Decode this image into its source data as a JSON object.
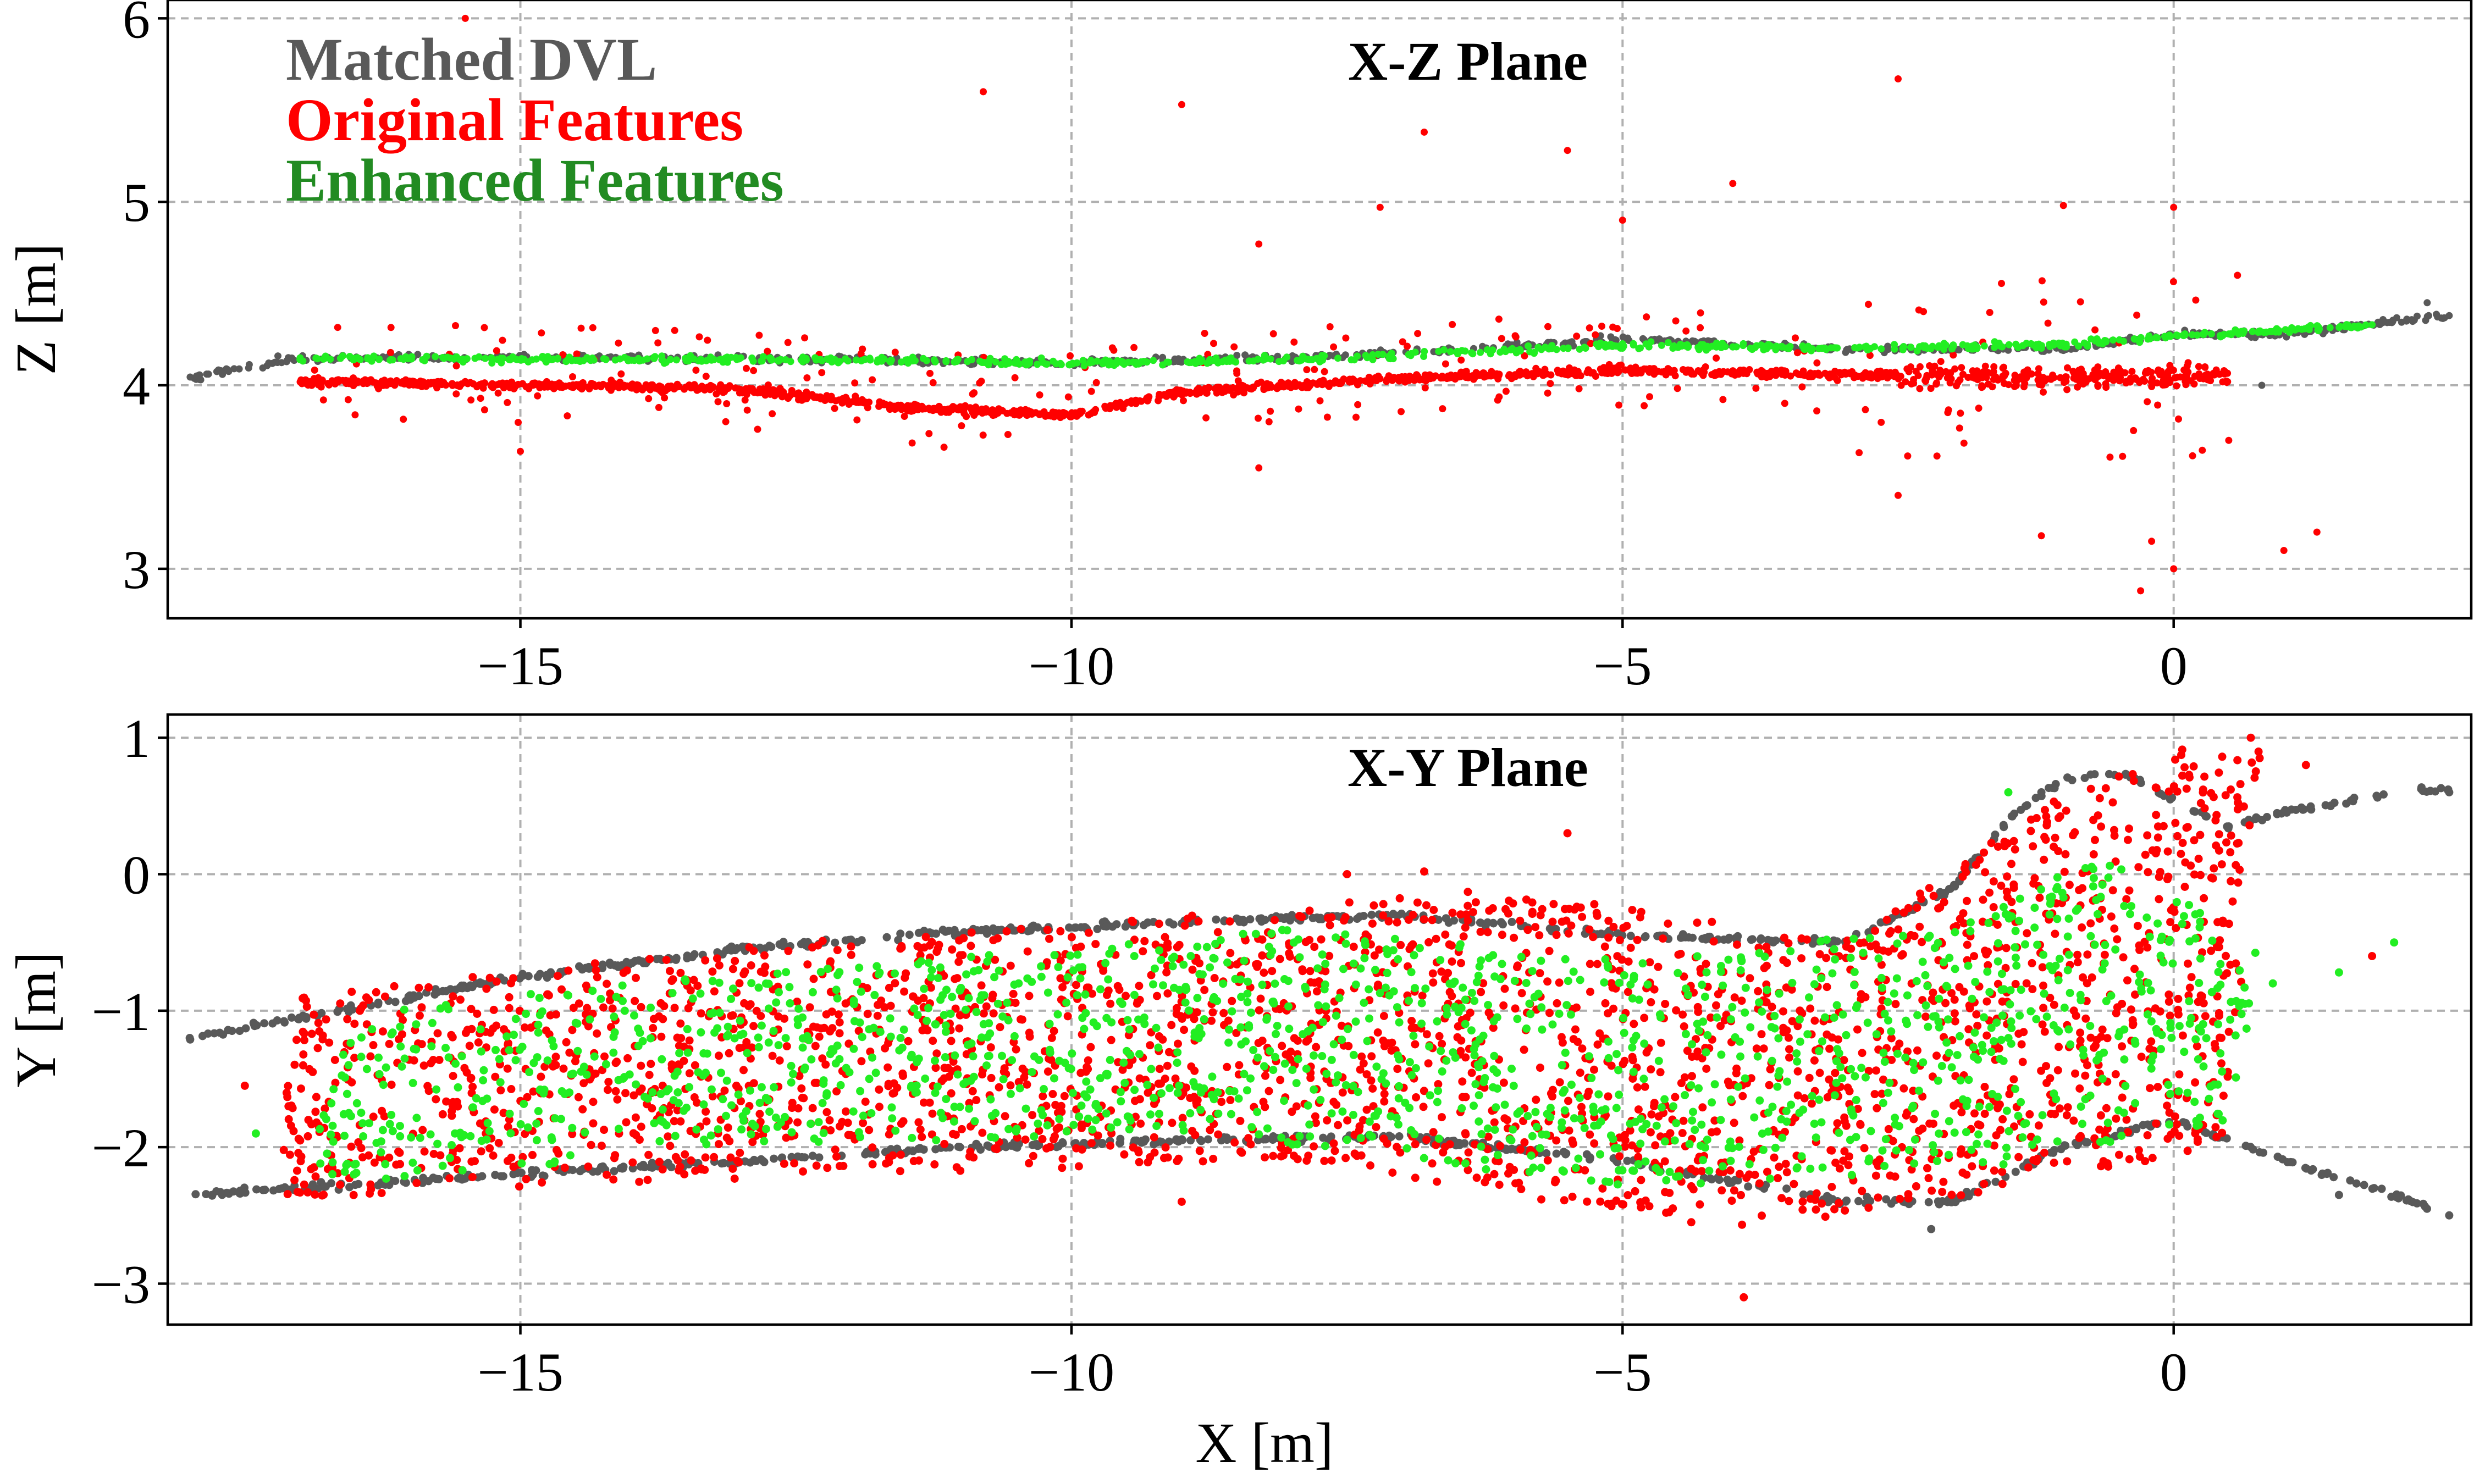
{
  "chart_data": [
    {
      "type": "scatter",
      "title": "X-Z Plane",
      "xlabel": "",
      "ylabel": "Z [m]",
      "xlim": [
        -18.2,
        2.7
      ],
      "ylim": [
        2.73,
        6.1
      ],
      "xticks": [
        -15,
        -10,
        -5,
        0
      ],
      "xtick_labels": [
        "−15",
        "−10",
        "−5",
        "0"
      ],
      "yticks": [
        3,
        4,
        5,
        6
      ],
      "ytick_labels": [
        "3",
        "4",
        "5",
        "6"
      ],
      "grid": true,
      "legend_placement": "top-left",
      "series": [
        {
          "name": "Matched DVL",
          "color": "#595959",
          "trend": [
            [
              -18.0,
              4.04
            ],
            [
              -17.0,
              4.15
            ],
            [
              -15.0,
              4.15
            ],
            [
              -12.0,
              4.14
            ],
            [
              -10.0,
              4.12
            ],
            [
              -7.5,
              4.16
            ],
            [
              -5.0,
              4.25
            ],
            [
              -3.0,
              4.2
            ],
            [
              -1.0,
              4.2
            ],
            [
              0.0,
              4.28
            ],
            [
              1.0,
              4.28
            ],
            [
              2.5,
              4.38
            ]
          ],
          "samples": [
            [
              -17.9,
              4.03
            ],
            [
              -17.2,
              4.16
            ],
            [
              -16.0,
              4.15
            ],
            [
              -14.0,
              4.16
            ],
            [
              -12.0,
              4.14
            ],
            [
              -9.8,
              4.14
            ],
            [
              -8.0,
              4.13
            ],
            [
              -5.2,
              4.27
            ],
            [
              -3.5,
              4.2
            ],
            [
              -1.0,
              4.19
            ],
            [
              0.1,
              4.3
            ],
            [
              0.8,
              4.0
            ],
            [
              1.6,
              4.32
            ],
            [
              2.3,
              4.45
            ],
            [
              2.5,
              4.38
            ]
          ]
        },
        {
          "name": "Original Features",
          "color": "#ff0000",
          "trend": [
            [
              -17.0,
              4.02
            ],
            [
              -15.0,
              4.0
            ],
            [
              -13.0,
              3.98
            ],
            [
              -11.5,
              3.88
            ],
            [
              -10.0,
              3.84
            ],
            [
              -9.0,
              3.96
            ],
            [
              -7.0,
              4.04
            ],
            [
              -5.0,
              4.08
            ],
            [
              -3.0,
              4.06
            ],
            [
              -1.0,
              4.04
            ],
            [
              0.0,
              4.05
            ],
            [
              0.5,
              4.05
            ]
          ],
          "samples": [
            [
              -15.5,
              6.0
            ],
            [
              -10.8,
              5.6
            ],
            [
              -9.0,
              5.53
            ],
            [
              -6.8,
              5.38
            ],
            [
              -5.5,
              5.28
            ],
            [
              -4.0,
              5.1
            ],
            [
              -2.5,
              5.67
            ],
            [
              -8.3,
              4.77
            ],
            [
              -7.2,
              4.97
            ],
            [
              -5.0,
              4.9
            ],
            [
              -1.0,
              4.98
            ],
            [
              0.0,
              4.97
            ],
            [
              -15.0,
              3.64
            ],
            [
              -8.3,
              3.55
            ],
            [
              -1.2,
              3.18
            ],
            [
              -0.2,
              3.15
            ],
            [
              -0.3,
              2.88
            ],
            [
              0.0,
              3.0
            ],
            [
              1.0,
              3.1
            ],
            [
              1.3,
              3.2
            ],
            [
              -2.5,
              3.4
            ],
            [
              0.5,
              3.7
            ]
          ]
        },
        {
          "name": "Enhanced Features",
          "color": "#22ee22",
          "trend": [
            [
              -17.0,
              4.15
            ],
            [
              -15.0,
              4.14
            ],
            [
              -12.0,
              4.14
            ],
            [
              -10.0,
              4.12
            ],
            [
              -7.5,
              4.15
            ],
            [
              -5.0,
              4.22
            ],
            [
              -3.0,
              4.2
            ],
            [
              -1.0,
              4.22
            ],
            [
              0.0,
              4.27
            ],
            [
              1.0,
              4.3
            ],
            [
              1.8,
              4.33
            ]
          ],
          "samples": [
            [
              -17.0,
              4.14
            ],
            [
              -13.0,
              4.15
            ],
            [
              -10.5,
              4.14
            ],
            [
              -6.0,
              4.2
            ],
            [
              -2.0,
              4.22
            ],
            [
              0.5,
              4.28
            ],
            [
              1.8,
              4.33
            ]
          ]
        }
      ]
    },
    {
      "type": "scatter",
      "title": "X-Y Plane",
      "xlabel": "X [m]",
      "ylabel": "Y [m]",
      "xlim": [
        -18.2,
        2.7
      ],
      "ylim": [
        -3.3,
        1.17
      ],
      "xticks": [
        -15,
        -10,
        -5,
        0
      ],
      "xtick_labels": [
        "−15",
        "−10",
        "−5",
        "0"
      ],
      "yticks": [
        -3,
        -2,
        -1,
        0,
        1
      ],
      "ytick_labels": [
        "−3",
        "−2",
        "−1",
        "0",
        "1"
      ],
      "grid": true,
      "series": [
        {
          "name": "Matched DVL",
          "color": "#595959",
          "trend_upper": [
            [
              -18.0,
              -1.2
            ],
            [
              -17.0,
              -1.05
            ],
            [
              -15.0,
              -0.75
            ],
            [
              -13.0,
              -0.55
            ],
            [
              -11.0,
              -0.42
            ],
            [
              -9.0,
              -0.35
            ],
            [
              -7.0,
              -0.3
            ],
            [
              -5.0,
              -0.45
            ],
            [
              -3.0,
              -0.5
            ],
            [
              -2.0,
              -0.1
            ],
            [
              -1.5,
              0.4
            ],
            [
              -1.0,
              0.7
            ],
            [
              -0.5,
              0.75
            ],
            [
              0.0,
              0.55
            ],
            [
              0.5,
              0.35
            ],
            [
              1.0,
              0.45
            ],
            [
              2.0,
              0.6
            ],
            [
              2.5,
              0.62
            ]
          ],
          "trend_lower": [
            [
              -18.0,
              -2.35
            ],
            [
              -17.0,
              -2.3
            ],
            [
              -15.0,
              -2.2
            ],
            [
              -13.0,
              -2.1
            ],
            [
              -11.0,
              -2.0
            ],
            [
              -9.0,
              -1.95
            ],
            [
              -7.0,
              -1.92
            ],
            [
              -5.0,
              -2.1
            ],
            [
              -4.0,
              -2.25
            ],
            [
              -3.0,
              -2.4
            ],
            [
              -2.0,
              -2.4
            ],
            [
              -1.0,
              -2.0
            ],
            [
              0.0,
              -1.8
            ],
            [
              1.0,
              -2.1
            ],
            [
              2.0,
              -2.35
            ],
            [
              2.5,
              -2.5
            ]
          ],
          "samples": [
            [
              -18.0,
              -1.2
            ],
            [
              -17.8,
              -2.35
            ],
            [
              -16.0,
              -0.9
            ],
            [
              -12.0,
              -0.48
            ],
            [
              -8.0,
              -0.3
            ],
            [
              -5.5,
              -0.42
            ],
            [
              -2.2,
              -2.6
            ],
            [
              -1.2,
              0.6
            ],
            [
              0.5,
              0.35
            ],
            [
              1.5,
              -2.35
            ],
            [
              2.5,
              0.6
            ],
            [
              2.5,
              -2.5
            ]
          ]
        },
        {
          "name": "Original Features",
          "color": "#ff0000",
          "region": [
            [
              -17.3,
              -2.45
            ],
            [
              -17.0,
              -0.9
            ],
            [
              -15.0,
              -0.7
            ],
            [
              -12.0,
              -0.45
            ],
            [
              -9.0,
              -0.3
            ],
            [
              -6.0,
              -0.1
            ],
            [
              -3.0,
              -0.5
            ],
            [
              -1.0,
              0.6
            ],
            [
              0.0,
              0.95
            ],
            [
              0.8,
              0.9
            ],
            [
              0.5,
              -2.0
            ],
            [
              -2.0,
              -2.4
            ],
            [
              -4.0,
              -2.6
            ],
            [
              -8.0,
              -2.1
            ],
            [
              -12.0,
              -2.2
            ],
            [
              -15.0,
              -2.3
            ]
          ],
          "samples": [
            [
              -6.8,
              0.02
            ],
            [
              -5.5,
              0.3
            ],
            [
              -3.9,
              -3.1
            ],
            [
              -9.0,
              -2.4
            ],
            [
              0.7,
              1.0
            ],
            [
              1.2,
              0.8
            ],
            [
              1.8,
              -0.6
            ],
            [
              -17.5,
              -1.55
            ],
            [
              -7.5,
              0.0
            ]
          ]
        },
        {
          "name": "Enhanced Features",
          "color": "#22ee22",
          "region": [
            [
              -17.0,
              -2.3
            ],
            [
              -16.5,
              -1.0
            ],
            [
              -14.0,
              -0.8
            ],
            [
              -11.0,
              -0.6
            ],
            [
              -8.0,
              -0.4
            ],
            [
              -5.0,
              -0.6
            ],
            [
              -2.0,
              -0.4
            ],
            [
              -0.5,
              0.2
            ],
            [
              0.8,
              -0.6
            ],
            [
              0.5,
              -1.8
            ],
            [
              -2.0,
              -2.2
            ],
            [
              -5.0,
              -2.3
            ],
            [
              -9.0,
              -1.9
            ],
            [
              -13.0,
              -2.0
            ]
          ],
          "samples": [
            [
              -17.4,
              -1.9
            ],
            [
              2.0,
              -0.5
            ],
            [
              1.5,
              -0.72
            ],
            [
              0.9,
              -0.8
            ],
            [
              -1.5,
              0.6
            ]
          ]
        }
      ]
    }
  ],
  "legend": {
    "entries": [
      {
        "label": "Matched DVL",
        "color": "#595959"
      },
      {
        "label": "Original Features",
        "color": "#ff0000"
      },
      {
        "label": "Enhanced Features",
        "color": "#228b22"
      }
    ]
  }
}
